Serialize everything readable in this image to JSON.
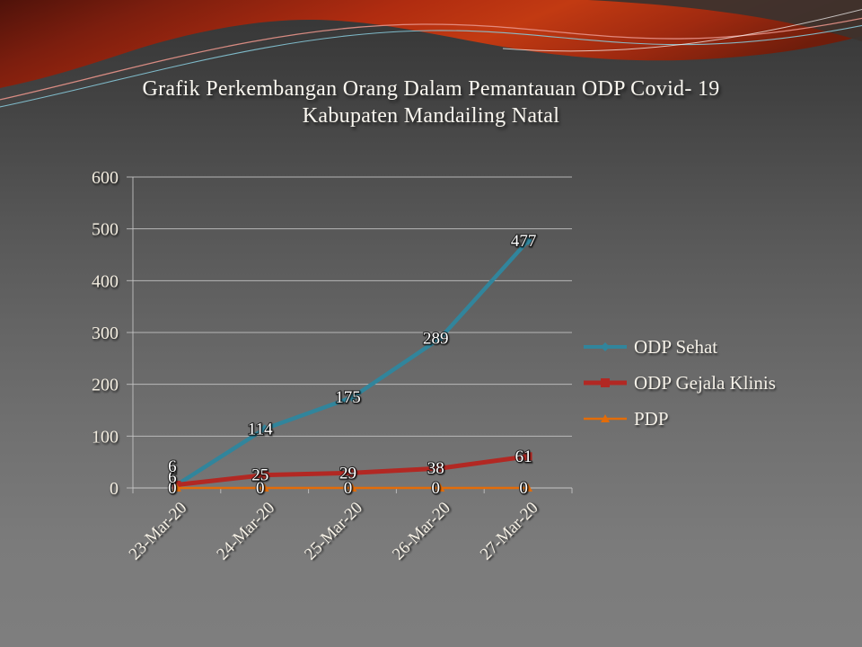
{
  "slide": {
    "title_line1": "Grafik Perkembangan Orang Dalam Pemantauan ODP Covid- 19",
    "title_line2": "Kabupaten Mandailing Natal"
  },
  "chart_data": {
    "type": "line",
    "categories": [
      "23-Mar-20",
      "24-Mar-20",
      "25-Mar-20",
      "26-Mar-20",
      "27-Mar-20"
    ],
    "series": [
      {
        "name": "ODP Sehat",
        "color": "#31859C",
        "marker": "diamond",
        "values": [
          6,
          114,
          175,
          289,
          477
        ]
      },
      {
        "name": "ODP Gejala Klinis",
        "color": "#B22823",
        "marker": "square",
        "values": [
          6,
          25,
          29,
          38,
          61
        ]
      },
      {
        "name": "PDP",
        "color": "#E36C09",
        "marker": "triangle",
        "values": [
          0,
          0,
          0,
          0,
          0
        ]
      }
    ],
    "ylim": [
      0,
      600
    ],
    "yticks": [
      600,
      500,
      400,
      300,
      200,
      100,
      0
    ],
    "grid": true,
    "data_labels": true,
    "legend_position": "right",
    "xlabel": "",
    "ylabel": ""
  },
  "theme": {
    "background_top": "#3a3a3a",
    "background_bottom": "#7e7e7e",
    "banner_red": "#B02C10",
    "gridline_color": "#C7C7C7",
    "text_color": "#F5F1E8"
  }
}
